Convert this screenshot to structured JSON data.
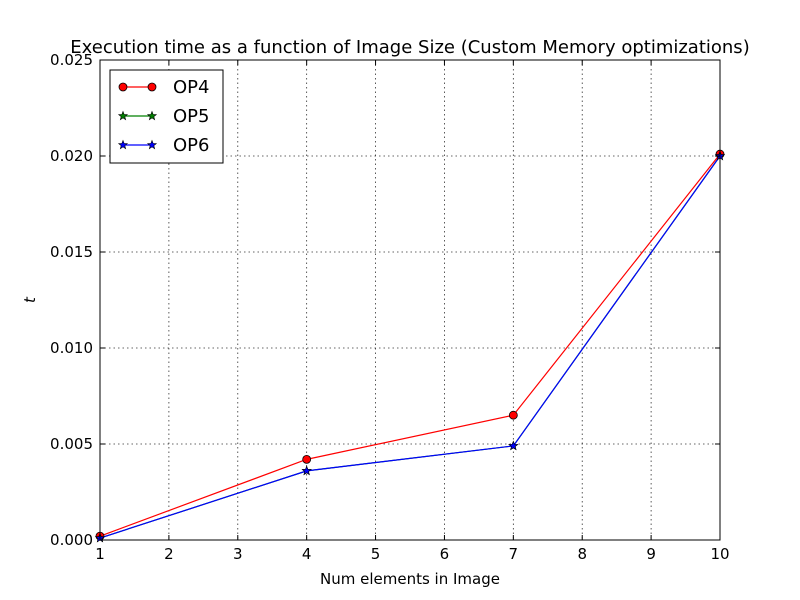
{
  "chart_data": {
    "type": "line",
    "title": "Execution time as a function of Image Size (Custom Memory optimizations)",
    "xlabel": "Num elements in Image",
    "ylabel": "t",
    "x": [
      1,
      4,
      7,
      10
    ],
    "xlim": [
      1,
      10
    ],
    "ylim": [
      0,
      0.025
    ],
    "x_ticks": [
      "1",
      "2",
      "3",
      "4",
      "5",
      "6",
      "7",
      "8",
      "9",
      "10"
    ],
    "y_ticks": [
      "0.000",
      "0.005",
      "0.010",
      "0.015",
      "0.020",
      "0.025"
    ],
    "grid": true,
    "legend_position": "top-left",
    "series": [
      {
        "name": "OP4",
        "values": [
          0.0002,
          0.0042,
          0.0065,
          0.0201
        ],
        "color": "#ff0000",
        "marker": "circle"
      },
      {
        "name": "OP5",
        "values": [
          0.0001,
          0.0036,
          0.0049,
          0.02
        ],
        "color": "#008000",
        "marker": "star"
      },
      {
        "name": "OP6",
        "values": [
          0.0001,
          0.0036,
          0.0049,
          0.02
        ],
        "color": "#0000ff",
        "marker": "star"
      }
    ]
  }
}
